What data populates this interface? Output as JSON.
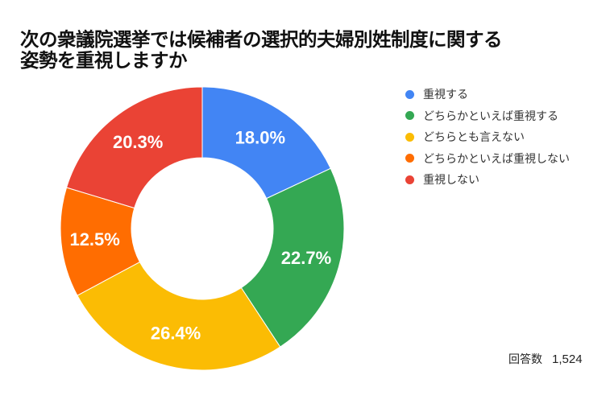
{
  "title": {
    "line1": "次の衆議院選挙では候補者の選択的夫婦別姓制度に関する",
    "line2": "姿勢を重視しますか"
  },
  "legend": [
    {
      "label": "重視する",
      "color": "#4285F4"
    },
    {
      "label": "どちらかといえば重視する",
      "color": "#34A853"
    },
    {
      "label": "どちらとも言えない",
      "color": "#FBBC04"
    },
    {
      "label": "どちらかといえば重視しない",
      "color": "#FF6D01"
    },
    {
      "label": "重視しない",
      "color": "#EA4335"
    }
  ],
  "footnote": {
    "label": "回答数",
    "value": "1,524"
  },
  "chart_data": {
    "type": "pie",
    "subtype": "donut",
    "title": "次の衆議院選挙では候補者の選択的夫婦別姓制度に関する姿勢を重視しますか",
    "categories": [
      "重視する",
      "どちらかといえば重視する",
      "どちらとも言えない",
      "どちらかといえば重視しない",
      "重視しない"
    ],
    "values": [
      18.0,
      22.7,
      26.4,
      12.5,
      20.3
    ],
    "value_labels": [
      "18.0%",
      "22.7%",
      "26.4%",
      "12.5%",
      "20.3%"
    ],
    "colors": [
      "#4285F4",
      "#34A853",
      "#FBBC04",
      "#FF6D01",
      "#EA4335"
    ],
    "start_angle_deg": 0,
    "direction": "clockwise",
    "legend_position": "right",
    "annotation": "回答数 1,524",
    "n": 1524
  }
}
